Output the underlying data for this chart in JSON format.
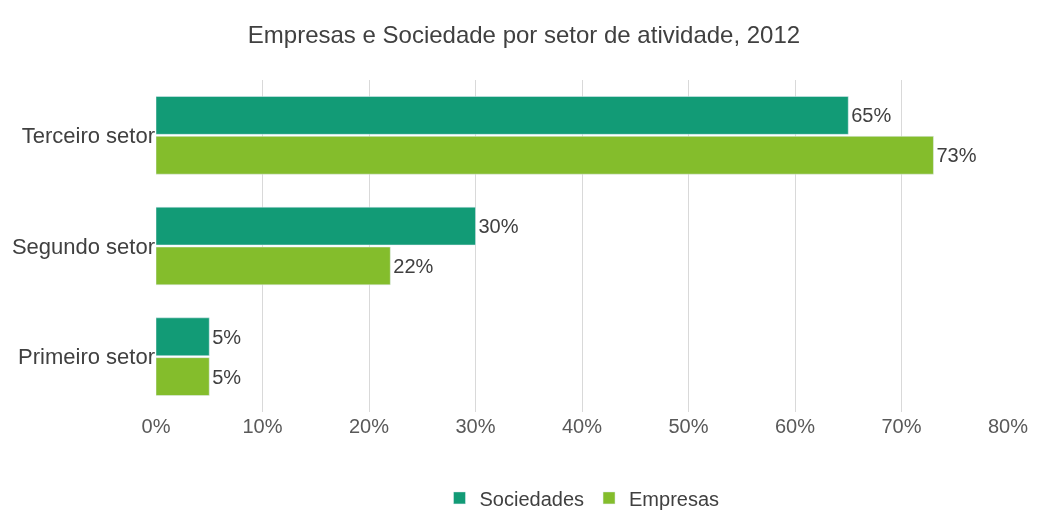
{
  "chart_data": {
    "type": "bar",
    "orientation": "horizontal",
    "title": "Empresas e Sociedade por setor de atividade, 2012",
    "categories": [
      "Terceiro setor",
      "Segundo setor",
      "Primeiro setor"
    ],
    "series": [
      {
        "name": "Sociedades",
        "color": "#129b76",
        "values": [
          65,
          30,
          5
        ],
        "value_labels": [
          "65%",
          "30%",
          "5%"
        ]
      },
      {
        "name": "Empresas",
        "color": "#84bd2c",
        "values": [
          73,
          22,
          5
        ],
        "value_labels": [
          "73%",
          "22%",
          "5%"
        ]
      }
    ],
    "xlim": [
      0,
      80
    ],
    "xticks": [
      {
        "value": 0,
        "label": "0%"
      },
      {
        "value": 10,
        "label": "10%"
      },
      {
        "value": 20,
        "label": "20%"
      },
      {
        "value": 30,
        "label": "30%"
      },
      {
        "value": 40,
        "label": "40%"
      },
      {
        "value": 50,
        "label": "50%"
      },
      {
        "value": 60,
        "label": "60%"
      },
      {
        "value": 70,
        "label": "70%"
      },
      {
        "value": 80,
        "label": "80%"
      }
    ],
    "grid": "x",
    "legend": "bottom"
  }
}
